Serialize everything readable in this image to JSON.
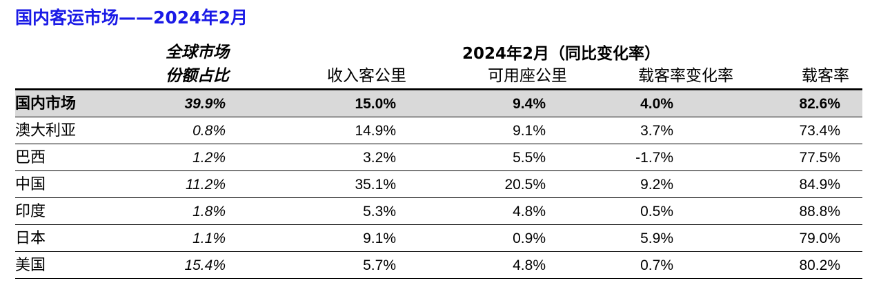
{
  "title": "国内客运市场——2024年2月",
  "header": {
    "share_line1": "全球市场",
    "share_line2": "份额占比",
    "group_label": "2024年2月（同比变化率）",
    "columns": [
      "收入客公里",
      "可用座公里",
      "载客率变化率",
      "载客率"
    ]
  },
  "rows": [
    {
      "name": "国内市场",
      "share": "39.9%",
      "rpk": "15.0%",
      "ask": "9.4%",
      "plf_change": "4.0%",
      "plf": "82.6%"
    },
    {
      "name": "澳大利亚",
      "share": "0.8%",
      "rpk": "14.9%",
      "ask": "9.1%",
      "plf_change": "3.7%",
      "plf": "73.4%"
    },
    {
      "name": "巴西",
      "share": "1.2%",
      "rpk": "3.2%",
      "ask": "5.5%",
      "plf_change": "-1.7%",
      "plf": "77.5%"
    },
    {
      "name": "中国",
      "share": "11.2%",
      "rpk": "35.1%",
      "ask": "20.5%",
      "plf_change": "9.2%",
      "plf": "84.9%"
    },
    {
      "name": "印度",
      "share": "1.8%",
      "rpk": "5.3%",
      "ask": "4.8%",
      "plf_change": "0.5%",
      "plf": "88.8%"
    },
    {
      "name": "日本",
      "share": "1.1%",
      "rpk": "9.1%",
      "ask": "0.9%",
      "plf_change": "5.9%",
      "plf": "79.0%"
    },
    {
      "name": "美国",
      "share": "15.4%",
      "rpk": "5.7%",
      "ask": "4.8%",
      "plf_change": "0.7%",
      "plf": "80.2%"
    }
  ],
  "colors": {
    "title": "#1a1ae6",
    "highlight_row": "#d9d9d9",
    "rule": "#000000"
  }
}
